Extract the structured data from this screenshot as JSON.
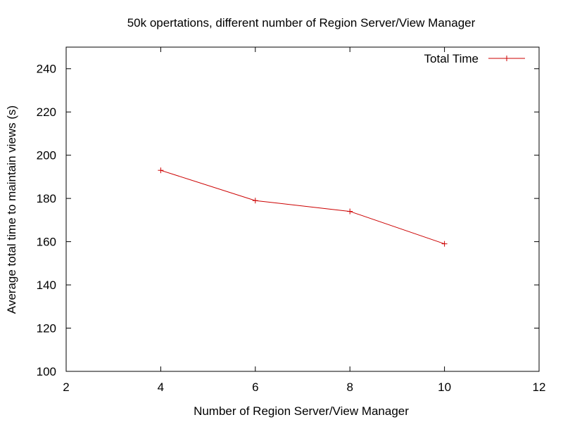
{
  "chart_data": {
    "type": "line",
    "title": "50k opertations, different number of Region Server/View Manager",
    "xlabel": "Number of Region Server/View Manager",
    "ylabel": "Average total time to maintain views (s)",
    "xlim": [
      2,
      12
    ],
    "ylim": [
      100,
      250
    ],
    "xticks": [
      2,
      4,
      6,
      8,
      10,
      12
    ],
    "yticks": [
      100,
      120,
      140,
      160,
      180,
      200,
      220,
      240
    ],
    "grid": false,
    "legend_position": "top-right",
    "series": [
      {
        "name": "Total Time",
        "color": "#cc0000",
        "marker": "plus",
        "x": [
          4,
          6,
          8,
          10
        ],
        "y": [
          193,
          179,
          174,
          159
        ]
      }
    ]
  }
}
